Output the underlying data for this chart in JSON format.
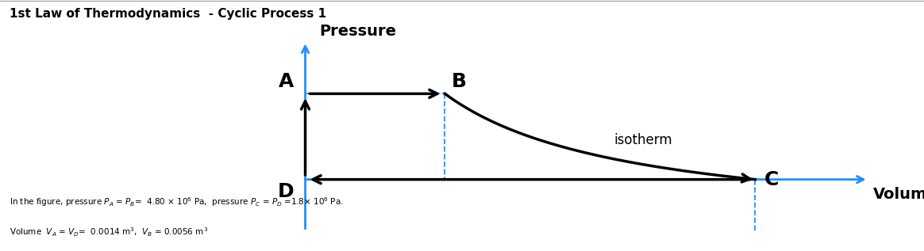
{
  "title": "1st Law of Thermodynamics  - Cyclic Process 1",
  "title_fontsize": 11,
  "title_fontweight": "bold",
  "pressure_label": "Pressure",
  "volume_label": "Volume",
  "isotherm_label": "isotherm",
  "caption_line1": "In the figure, pressure P_A = P_B=  4.80 × 10⁶ Pa,  pressure P_C = P_D =1.8× 10⁶ Pa.",
  "caption_line2": "Volume  V_A = V_D=  0.0014 m³,  V_B = 0.0056 m³",
  "VA": 0.0014,
  "VB": 0.0056,
  "PA": 4.8,
  "PC": 1.8,
  "axis_color": "#1e8fff",
  "dashed_color": "#1e8fff",
  "arrow_color": "black",
  "curve_color": "black",
  "background_color": "#ffffff",
  "figsize": [
    11.64,
    3.17
  ],
  "dpi": 100
}
